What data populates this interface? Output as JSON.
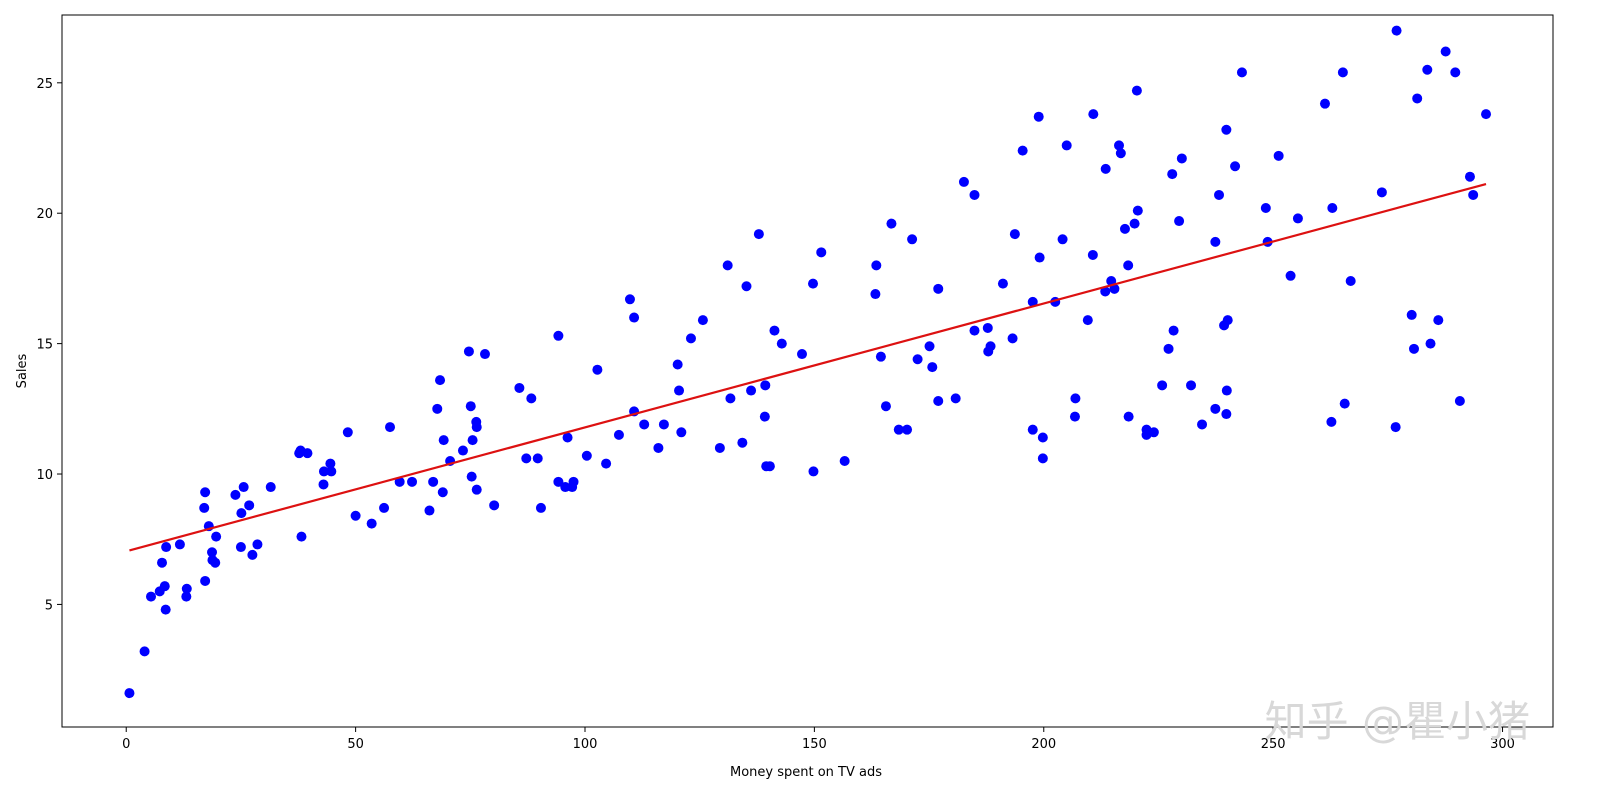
{
  "chart_data": {
    "type": "scatter",
    "xlabel": "Money spent on TV ads",
    "ylabel": "Sales",
    "xlim": [
      -14,
      311
    ],
    "ylim": [
      0.3,
      27.6
    ],
    "x_ticks": [
      0,
      50,
      100,
      150,
      200,
      250,
      300
    ],
    "y_ticks": [
      5,
      10,
      15,
      20,
      25
    ],
    "grid": false,
    "point_color": "#0000ff",
    "line_color": "#dd1111",
    "regression_line": {
      "x": [
        0.7,
        296.4
      ],
      "y": [
        7.07,
        21.12
      ]
    },
    "points": [
      [
        0.7,
        1.6
      ],
      [
        4,
        3.2
      ],
      [
        5.4,
        5.3
      ],
      [
        7.3,
        5.5
      ],
      [
        7.8,
        6.6
      ],
      [
        8.4,
        5.7
      ],
      [
        8.6,
        4.8
      ],
      [
        8.7,
        7.2
      ],
      [
        11.7,
        7.3
      ],
      [
        13.1,
        5.3
      ],
      [
        13.2,
        5.6
      ],
      [
        17,
        8.7
      ],
      [
        17.2,
        9.3
      ],
      [
        17.2,
        5.9
      ],
      [
        18,
        8
      ],
      [
        18.7,
        7
      ],
      [
        18.8,
        6.7
      ],
      [
        19.4,
        6.6
      ],
      [
        19.6,
        7.6
      ],
      [
        23.8,
        9.2
      ],
      [
        25,
        7.2
      ],
      [
        25.1,
        8.5
      ],
      [
        25.6,
        9.5
      ],
      [
        26.8,
        8.8
      ],
      [
        27.5,
        6.9
      ],
      [
        28.6,
        7.3
      ],
      [
        31.5,
        9.5
      ],
      [
        37.7,
        10.8
      ],
      [
        38,
        10.9
      ],
      [
        38.2,
        7.6
      ],
      [
        39.5,
        10.8
      ],
      [
        43,
        9.6
      ],
      [
        43.1,
        10.1
      ],
      [
        44.5,
        10.4
      ],
      [
        44.7,
        10.1
      ],
      [
        48.3,
        11.6
      ],
      [
        50,
        8.4
      ],
      [
        53.5,
        8.1
      ],
      [
        56.2,
        8.7
      ],
      [
        57.5,
        11.8
      ],
      [
        59.6,
        9.7
      ],
      [
        62.3,
        9.7
      ],
      [
        66.1,
        8.6
      ],
      [
        66.9,
        9.7
      ],
      [
        67.8,
        12.5
      ],
      [
        68.4,
        13.6
      ],
      [
        69,
        9.3
      ],
      [
        69.2,
        11.3
      ],
      [
        70.6,
        10.5
      ],
      [
        73.4,
        10.9
      ],
      [
        74.7,
        14.7
      ],
      [
        75.1,
        12.6
      ],
      [
        75.3,
        9.9
      ],
      [
        75.5,
        11.3
      ],
      [
        76.3,
        12
      ],
      [
        76.4,
        11.8
      ],
      [
        76.4,
        9.4
      ],
      [
        78.2,
        14.6
      ],
      [
        80.2,
        8.8
      ],
      [
        85.7,
        13.3
      ],
      [
        87.2,
        10.6
      ],
      [
        88.3,
        12.9
      ],
      [
        89.7,
        10.6
      ],
      [
        90.4,
        8.7
      ],
      [
        94.2,
        15.3
      ],
      [
        94.2,
        9.7
      ],
      [
        95.7,
        9.5
      ],
      [
        96.2,
        11.4
      ],
      [
        97.2,
        9.5
      ],
      [
        97.5,
        9.7
      ],
      [
        100.4,
        10.7
      ],
      [
        102.7,
        14
      ],
      [
        104.6,
        10.4
      ],
      [
        107.4,
        11.5
      ],
      [
        109.8,
        16.7
      ],
      [
        110.7,
        16
      ],
      [
        110.7,
        12.4
      ],
      [
        112.9,
        11.9
      ],
      [
        116,
        11
      ],
      [
        117.2,
        11.9
      ],
      [
        120.2,
        14.2
      ],
      [
        120.5,
        13.2
      ],
      [
        121,
        11.6
      ],
      [
        123.1,
        15.2
      ],
      [
        125.7,
        15.9
      ],
      [
        129.4,
        11
      ],
      [
        131.1,
        18
      ],
      [
        131.7,
        12.9
      ],
      [
        134.3,
        11.2
      ],
      [
        135.2,
        17.2
      ],
      [
        136.2,
        13.2
      ],
      [
        137.9,
        19.2
      ],
      [
        139.2,
        12.2
      ],
      [
        139.3,
        13.4
      ],
      [
        139.5,
        10.3
      ],
      [
        140.3,
        10.3
      ],
      [
        141.3,
        15.5
      ],
      [
        142.9,
        15
      ],
      [
        147.3,
        14.6
      ],
      [
        149.7,
        17.3
      ],
      [
        149.8,
        10.1
      ],
      [
        151.5,
        18.5
      ],
      [
        156.6,
        10.5
      ],
      [
        163.3,
        16.9
      ],
      [
        163.5,
        18
      ],
      [
        164.5,
        14.5
      ],
      [
        165.6,
        12.6
      ],
      [
        166.8,
        19.6
      ],
      [
        168.4,
        11.7
      ],
      [
        170.2,
        11.7
      ],
      [
        171.3,
        19
      ],
      [
        172.5,
        14.4
      ],
      [
        175.1,
        14.9
      ],
      [
        175.7,
        14.1
      ],
      [
        177,
        12.8
      ],
      [
        177,
        17.1
      ],
      [
        180.8,
        12.9
      ],
      [
        182.6,
        21.2
      ],
      [
        184.9,
        15.5
      ],
      [
        184.9,
        20.7
      ],
      [
        187.8,
        15.6
      ],
      [
        187.9,
        14.7
      ],
      [
        188.4,
        14.9
      ],
      [
        191.1,
        17.3
      ],
      [
        193.2,
        15.2
      ],
      [
        193.7,
        19.2
      ],
      [
        195.4,
        22.4
      ],
      [
        197.6,
        16.6
      ],
      [
        197.6,
        11.7
      ],
      [
        198.9,
        23.7
      ],
      [
        199.1,
        18.3
      ],
      [
        199.8,
        11.4
      ],
      [
        199.8,
        10.6
      ],
      [
        202.5,
        16.6
      ],
      [
        204.1,
        19
      ],
      [
        205,
        22.6
      ],
      [
        206.8,
        12.2
      ],
      [
        206.9,
        12.9
      ],
      [
        209.6,
        15.9
      ],
      [
        210.7,
        18.4
      ],
      [
        210.8,
        23.8
      ],
      [
        213.4,
        17
      ],
      [
        213.5,
        21.7
      ],
      [
        214.7,
        17.4
      ],
      [
        215.4,
        17.1
      ],
      [
        216.4,
        22.6
      ],
      [
        216.8,
        22.3
      ],
      [
        217.7,
        19.4
      ],
      [
        218.4,
        18
      ],
      [
        218.5,
        12.2
      ],
      [
        219.8,
        19.6
      ],
      [
        220.3,
        24.7
      ],
      [
        220.5,
        20.1
      ],
      [
        222.4,
        11.7
      ],
      [
        222.4,
        11.5
      ],
      [
        224,
        11.6
      ],
      [
        225.8,
        13.4
      ],
      [
        227.2,
        14.8
      ],
      [
        228,
        21.5
      ],
      [
        228.3,
        15.5
      ],
      [
        229.5,
        19.7
      ],
      [
        230.1,
        22.1
      ],
      [
        232.1,
        13.4
      ],
      [
        234.5,
        11.9
      ],
      [
        237.4,
        12.5
      ],
      [
        237.4,
        18.9
      ],
      [
        238.2,
        20.7
      ],
      [
        239.3,
        15.7
      ],
      [
        239.8,
        23.2
      ],
      [
        239.8,
        12.3
      ],
      [
        239.9,
        13.2
      ],
      [
        240.1,
        15.9
      ],
      [
        241.7,
        21.8
      ],
      [
        243.2,
        25.4
      ],
      [
        248.4,
        20.2
      ],
      [
        248.8,
        18.9
      ],
      [
        251.2,
        22.2
      ],
      [
        253.8,
        17.6
      ],
      [
        255.4,
        19.8
      ],
      [
        261.3,
        24.2
      ],
      [
        262.7,
        12
      ],
      [
        262.9,
        20.2
      ],
      [
        265.6,
        12.7
      ],
      [
        266.9,
        17.4
      ],
      [
        265.2,
        25.4
      ],
      [
        273.7,
        20.8
      ],
      [
        276.7,
        11.8
      ],
      [
        276.9,
        27
      ],
      [
        280.2,
        16.1
      ],
      [
        280.7,
        14.8
      ],
      [
        281.4,
        24.4
      ],
      [
        283.6,
        25.5
      ],
      [
        284.3,
        15
      ],
      [
        286,
        15.9
      ],
      [
        287.6,
        26.2
      ],
      [
        289.7,
        25.4
      ],
      [
        290.7,
        12.8
      ],
      [
        292.9,
        21.4
      ],
      [
        293.6,
        20.7
      ],
      [
        296.4,
        23.8
      ]
    ]
  },
  "watermark": "知乎 @瞿小猪"
}
